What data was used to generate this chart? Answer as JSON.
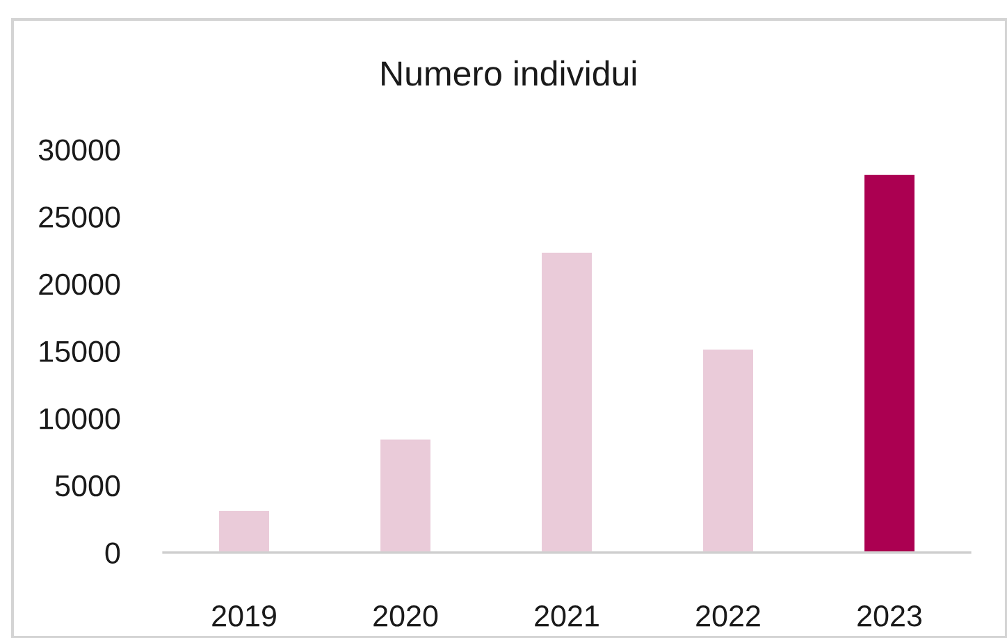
{
  "chart_data": {
    "type": "bar",
    "title": "Numero individui",
    "categories": [
      "2019",
      "2020",
      "2021",
      "2022",
      "2023"
    ],
    "values": [
      3100,
      8400,
      22300,
      15100,
      28100
    ],
    "colors": [
      "#eacbd9",
      "#eacbd9",
      "#eacbd9",
      "#eacbd9",
      "#ab0051"
    ],
    "ylim": [
      0,
      30000
    ],
    "yticks": [
      0,
      5000,
      10000,
      15000,
      20000,
      25000,
      30000
    ],
    "grid": false,
    "legend": false
  }
}
